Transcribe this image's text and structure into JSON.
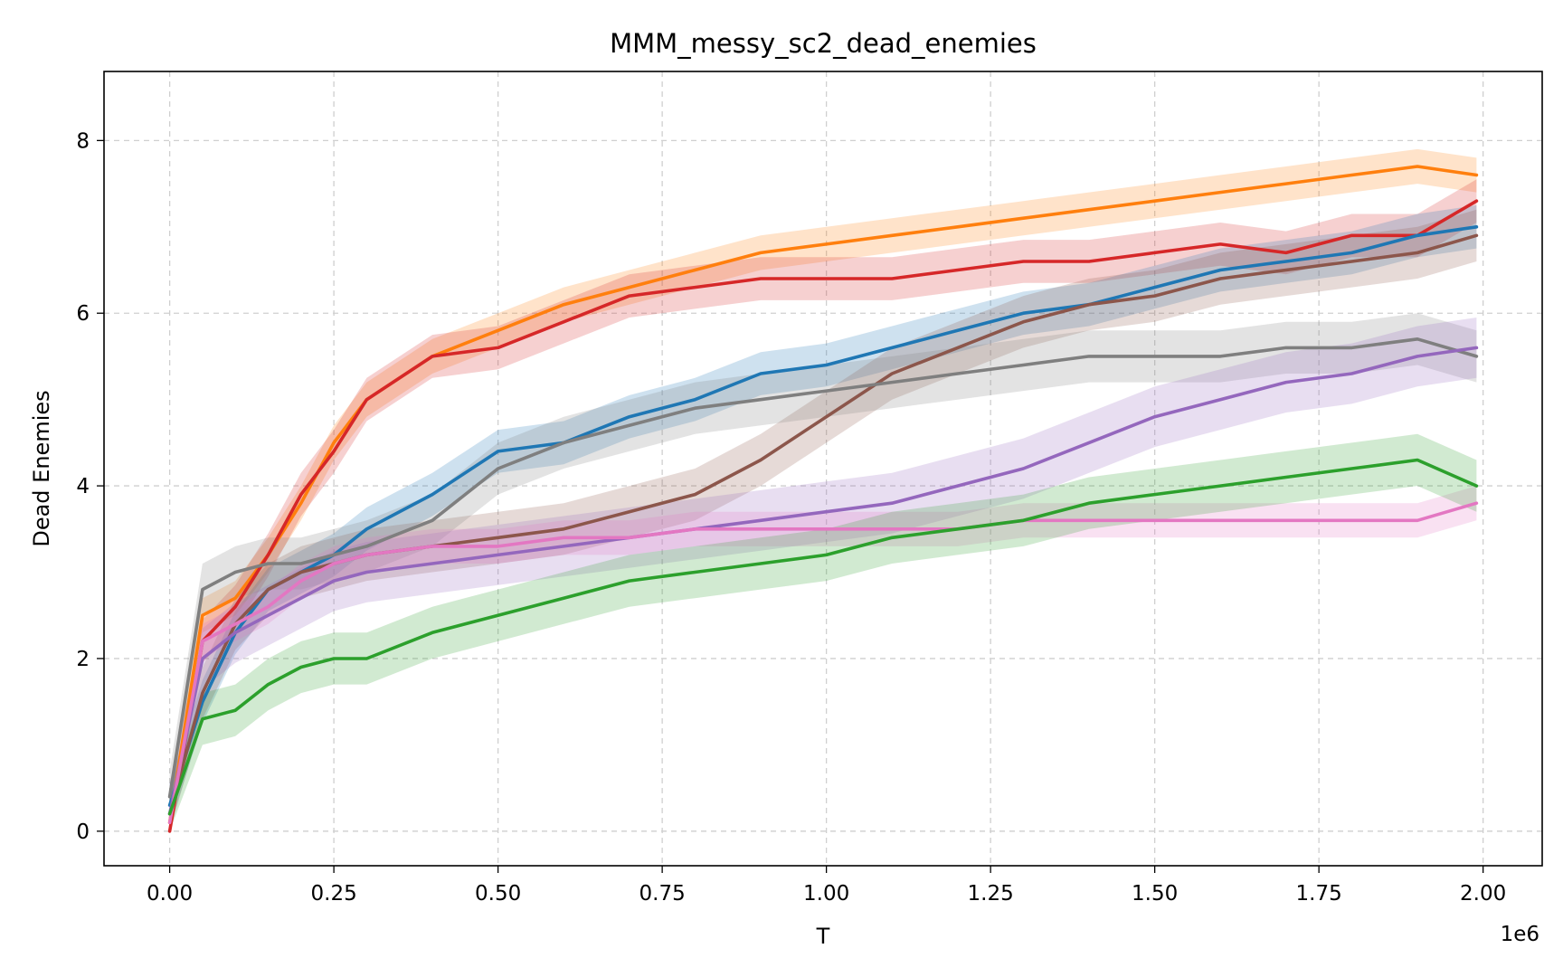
{
  "chart_data": {
    "type": "line",
    "title": "MMM_messy_sc2_dead_enemies",
    "xlabel": "T",
    "ylabel": "Dead Enemies",
    "x_offset_label": "1e6",
    "xlim": [
      -0.1,
      2.09
    ],
    "ylim": [
      -0.4,
      8.8
    ],
    "x_ticks": [
      0.0,
      0.25,
      0.5,
      0.75,
      1.0,
      1.25,
      1.5,
      1.75,
      2.0
    ],
    "x_tick_labels": [
      "0.00",
      "0.25",
      "0.50",
      "0.75",
      "1.00",
      "1.25",
      "1.50",
      "1.75",
      "2.00"
    ],
    "y_ticks": [
      0,
      2,
      4,
      6,
      8
    ],
    "y_tick_labels": [
      "0",
      "2",
      "4",
      "6",
      "8"
    ],
    "grid": true,
    "legend": "none",
    "series": [
      {
        "color": "#ff7f0e",
        "x": [
          0.0,
          0.05,
          0.1,
          0.15,
          0.2,
          0.25,
          0.3,
          0.4,
          0.5,
          0.6,
          0.7,
          0.8,
          0.9,
          1.0,
          1.1,
          1.2,
          1.3,
          1.4,
          1.5,
          1.6,
          1.7,
          1.8,
          1.9,
          1.99
        ],
        "y": [
          0.1,
          2.5,
          2.7,
          3.2,
          3.8,
          4.5,
          5.0,
          5.5,
          5.8,
          6.1,
          6.3,
          6.5,
          6.7,
          6.8,
          6.9,
          7.0,
          7.1,
          7.2,
          7.3,
          7.4,
          7.5,
          7.6,
          7.7,
          7.6
        ],
        "spread": 0.2
      },
      {
        "color": "#d62728",
        "x": [
          0.0,
          0.05,
          0.1,
          0.15,
          0.2,
          0.25,
          0.3,
          0.4,
          0.5,
          0.6,
          0.7,
          0.8,
          0.9,
          1.0,
          1.1,
          1.2,
          1.3,
          1.4,
          1.5,
          1.6,
          1.7,
          1.8,
          1.9,
          1.99
        ],
        "y": [
          0.0,
          2.2,
          2.6,
          3.2,
          3.9,
          4.4,
          5.0,
          5.5,
          5.6,
          5.9,
          6.2,
          6.3,
          6.4,
          6.4,
          6.4,
          6.5,
          6.6,
          6.6,
          6.7,
          6.8,
          6.7,
          6.9,
          6.9,
          7.3
        ],
        "spread": 0.25
      },
      {
        "color": "#1f77b4",
        "x": [
          0.0,
          0.05,
          0.1,
          0.15,
          0.2,
          0.25,
          0.3,
          0.4,
          0.5,
          0.6,
          0.7,
          0.8,
          0.9,
          1.0,
          1.1,
          1.2,
          1.3,
          1.4,
          1.5,
          1.6,
          1.7,
          1.8,
          1.9,
          1.99
        ],
        "y": [
          0.3,
          1.5,
          2.3,
          2.8,
          3.0,
          3.2,
          3.5,
          3.9,
          4.4,
          4.5,
          4.8,
          5.0,
          5.3,
          5.4,
          5.6,
          5.8,
          6.0,
          6.1,
          6.3,
          6.5,
          6.6,
          6.7,
          6.9,
          7.0
        ],
        "spread": 0.25
      },
      {
        "color": "#8c564b",
        "x": [
          0.0,
          0.05,
          0.1,
          0.15,
          0.2,
          0.25,
          0.3,
          0.4,
          0.5,
          0.6,
          0.7,
          0.8,
          0.9,
          1.0,
          1.1,
          1.2,
          1.3,
          1.4,
          1.5,
          1.6,
          1.7,
          1.8,
          1.9,
          1.99
        ],
        "y": [
          0.2,
          1.6,
          2.4,
          2.8,
          3.0,
          3.1,
          3.2,
          3.3,
          3.4,
          3.5,
          3.7,
          3.9,
          4.3,
          4.8,
          5.3,
          5.6,
          5.9,
          6.1,
          6.2,
          6.4,
          6.5,
          6.6,
          6.7,
          6.9
        ],
        "spread": 0.3
      },
      {
        "color": "#7f7f7f",
        "x": [
          0.0,
          0.05,
          0.1,
          0.15,
          0.2,
          0.25,
          0.3,
          0.4,
          0.5,
          0.6,
          0.7,
          0.8,
          0.9,
          1.0,
          1.1,
          1.2,
          1.3,
          1.4,
          1.5,
          1.6,
          1.7,
          1.8,
          1.9,
          1.99
        ],
        "y": [
          0.4,
          2.8,
          3.0,
          3.1,
          3.1,
          3.2,
          3.3,
          3.6,
          4.2,
          4.5,
          4.7,
          4.9,
          5.0,
          5.1,
          5.2,
          5.3,
          5.4,
          5.5,
          5.5,
          5.5,
          5.6,
          5.6,
          5.7,
          5.5
        ],
        "spread": 0.3
      },
      {
        "color": "#9467bd",
        "x": [
          0.0,
          0.05,
          0.1,
          0.15,
          0.2,
          0.25,
          0.3,
          0.4,
          0.5,
          0.6,
          0.7,
          0.8,
          0.9,
          1.0,
          1.1,
          1.2,
          1.3,
          1.4,
          1.5,
          1.6,
          1.7,
          1.8,
          1.9,
          1.99
        ],
        "y": [
          0.2,
          2.0,
          2.3,
          2.5,
          2.7,
          2.9,
          3.0,
          3.1,
          3.2,
          3.3,
          3.4,
          3.5,
          3.6,
          3.7,
          3.8,
          4.0,
          4.2,
          4.5,
          4.8,
          5.0,
          5.2,
          5.3,
          5.5,
          5.6
        ],
        "spread": 0.35
      },
      {
        "color": "#e377c2",
        "x": [
          0.0,
          0.05,
          0.1,
          0.15,
          0.2,
          0.25,
          0.3,
          0.4,
          0.5,
          0.6,
          0.7,
          0.8,
          0.9,
          1.0,
          1.1,
          1.2,
          1.3,
          1.4,
          1.5,
          1.6,
          1.7,
          1.8,
          1.9,
          1.99
        ],
        "y": [
          0.1,
          2.2,
          2.4,
          2.6,
          2.9,
          3.1,
          3.2,
          3.3,
          3.3,
          3.4,
          3.4,
          3.5,
          3.5,
          3.5,
          3.5,
          3.5,
          3.6,
          3.6,
          3.6,
          3.6,
          3.6,
          3.6,
          3.6,
          3.8
        ],
        "spread": 0.2
      },
      {
        "color": "#2ca02c",
        "x": [
          0.0,
          0.05,
          0.1,
          0.15,
          0.2,
          0.25,
          0.3,
          0.4,
          0.5,
          0.6,
          0.7,
          0.8,
          0.9,
          1.0,
          1.1,
          1.2,
          1.3,
          1.4,
          1.5,
          1.6,
          1.7,
          1.8,
          1.9,
          1.99
        ],
        "y": [
          0.2,
          1.3,
          1.4,
          1.7,
          1.9,
          2.0,
          2.0,
          2.3,
          2.5,
          2.7,
          2.9,
          3.0,
          3.1,
          3.2,
          3.4,
          3.5,
          3.6,
          3.8,
          3.9,
          4.0,
          4.1,
          4.2,
          4.3,
          4.0
        ],
        "spread": 0.3
      }
    ]
  }
}
